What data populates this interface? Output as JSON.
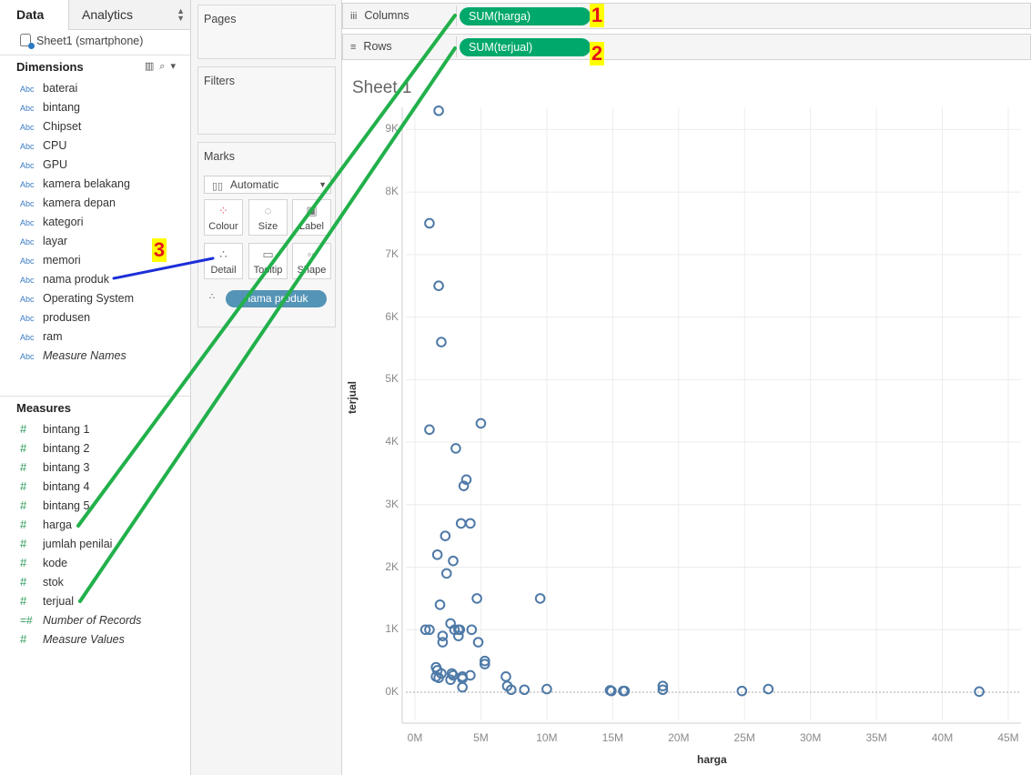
{
  "tabs": {
    "data": "Data",
    "analytics": "Analytics"
  },
  "datasource": "Sheet1 (smartphone)",
  "dimensions": {
    "title": "Dimensions",
    "type_label": "Abc",
    "items": [
      "baterai",
      "bintang",
      "Chipset",
      "CPU",
      "GPU",
      "kamera belakang",
      "kamera depan",
      "kategori",
      "layar",
      "memori",
      "nama produk",
      "Operating System",
      "produsen",
      "ram",
      "Measure Names"
    ]
  },
  "measures": {
    "title": "Measures",
    "items": [
      "bintang 1",
      "bintang 2",
      "bintang 3",
      "bintang 4",
      "bintang 5",
      "harga",
      "jumlah penilai",
      "kode",
      "stok",
      "terjual",
      "Number of Records",
      "Measure Values"
    ]
  },
  "cards": {
    "pages": "Pages",
    "filters": "Filters",
    "marks": "Marks",
    "mark_type": "Automatic",
    "buttons": [
      "Colour",
      "Size",
      "Label",
      "Detail",
      "Tooltip",
      "Shape"
    ],
    "detail_pill": "nama produk"
  },
  "shelves": {
    "columns_label": "Columns",
    "rows_label": "Rows",
    "columns_pill": "SUM(harga)",
    "rows_pill": "SUM(terjual)"
  },
  "annotations": [
    "1",
    "2",
    "3"
  ],
  "colors": {
    "green_pill": "#00a86b",
    "blue_pill": "#5494b6",
    "mark": "#4e79a7",
    "annotation_green": "#22b04b",
    "annotation_blue": "#1c2fd8"
  },
  "sheet_title": "Sheet 1",
  "chart_data": {
    "type": "scatter",
    "xlabel": "harga",
    "ylabel": "terjual",
    "xlim": [
      0,
      45000000
    ],
    "ylim": [
      0,
      9500
    ],
    "x_ticks": [
      "0M",
      "5M",
      "10M",
      "15M",
      "20M",
      "25M",
      "30M",
      "35M",
      "40M",
      "45M"
    ],
    "y_ticks": [
      "0K",
      "1K",
      "2K",
      "3K",
      "4K",
      "5K",
      "6K",
      "7K",
      "8K",
      "9K"
    ],
    "points": [
      [
        1800000,
        9300
      ],
      [
        1100000,
        7500
      ],
      [
        1800000,
        6500
      ],
      [
        2000000,
        5600
      ],
      [
        1100000,
        4200
      ],
      [
        5000000,
        4300
      ],
      [
        3100000,
        3900
      ],
      [
        3900000,
        3400
      ],
      [
        3700000,
        3300
      ],
      [
        3500000,
        2700
      ],
      [
        4200000,
        2700
      ],
      [
        2300000,
        2500
      ],
      [
        1700000,
        2200
      ],
      [
        2900000,
        2100
      ],
      [
        2400000,
        1900
      ],
      [
        1900000,
        1400
      ],
      [
        4700000,
        1500
      ],
      [
        9500000,
        1500
      ],
      [
        800000,
        1000
      ],
      [
        1100000,
        1000
      ],
      [
        2700000,
        1100
      ],
      [
        3000000,
        1000
      ],
      [
        3300000,
        1000
      ],
      [
        3400000,
        1000
      ],
      [
        4300000,
        1000
      ],
      [
        2100000,
        900
      ],
      [
        2100000,
        800
      ],
      [
        3300000,
        900
      ],
      [
        4800000,
        800
      ],
      [
        5300000,
        500
      ],
      [
        5300000,
        450
      ],
      [
        1600000,
        400
      ],
      [
        1700000,
        350
      ],
      [
        2000000,
        300
      ],
      [
        1600000,
        250
      ],
      [
        1800000,
        230
      ],
      [
        2800000,
        300
      ],
      [
        2900000,
        270
      ],
      [
        2700000,
        200
      ],
      [
        3600000,
        250
      ],
      [
        3600000,
        220
      ],
      [
        4200000,
        270
      ],
      [
        6900000,
        250
      ],
      [
        7000000,
        100
      ],
      [
        3600000,
        80
      ],
      [
        7300000,
        40
      ],
      [
        8300000,
        40
      ],
      [
        10000000,
        50
      ],
      [
        14800000,
        30
      ],
      [
        14900000,
        20
      ],
      [
        15800000,
        20
      ],
      [
        15900000,
        20
      ],
      [
        18800000,
        100
      ],
      [
        18800000,
        40
      ],
      [
        24800000,
        20
      ],
      [
        26800000,
        50
      ],
      [
        42800000,
        10
      ]
    ]
  }
}
